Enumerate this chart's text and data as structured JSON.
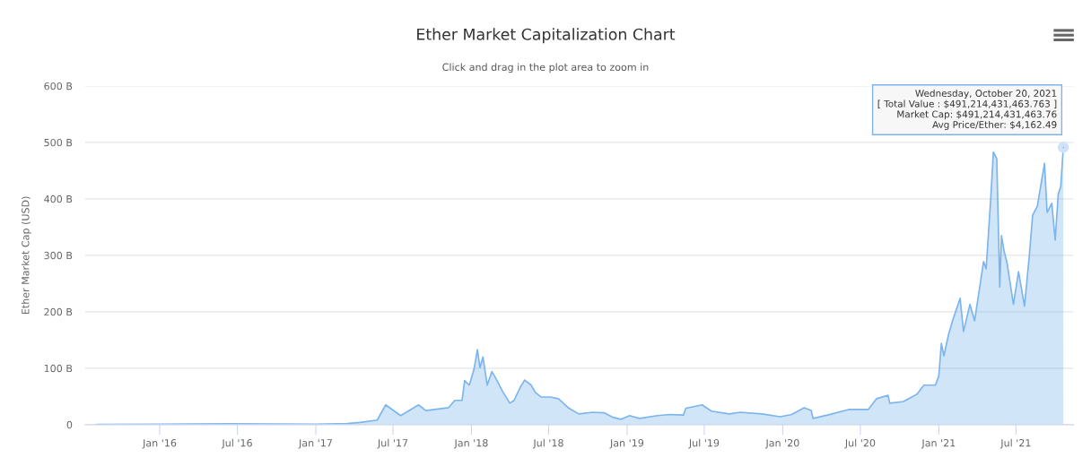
{
  "chart_data": {
    "type": "area",
    "title": "Ether Market Capitalization Chart",
    "subtitle": "Click and drag in the plot area to zoom in",
    "ylabel": "Ether Market Cap (USD)",
    "x": [
      "2015-08-07",
      "2016-01-01",
      "2016-03-15",
      "2016-06-17",
      "2016-12-31",
      "2017-03-15",
      "2017-04-15",
      "2017-05-25",
      "2017-06-14",
      "2017-07-19",
      "2017-08-30",
      "2017-09-16",
      "2017-11-08",
      "2017-11-23",
      "2017-12-10",
      "2017-12-16",
      "2017-12-27",
      "2018-01-07",
      "2018-01-15",
      "2018-01-21",
      "2018-01-28",
      "2018-02-07",
      "2018-02-18",
      "2018-02-28",
      "2018-03-15",
      "2018-04-01",
      "2018-04-11",
      "2018-04-26",
      "2018-05-06",
      "2018-05-21",
      "2018-05-31",
      "2018-06-13",
      "2018-07-05",
      "2018-07-24",
      "2018-08-16",
      "2018-09-10",
      "2018-10-12",
      "2018-11-08",
      "2018-11-29",
      "2018-12-18",
      "2019-01-07",
      "2019-01-30",
      "2019-03-13",
      "2019-04-11",
      "2019-05-13",
      "2019-05-19",
      "2019-06-26",
      "2019-07-18",
      "2019-08-29",
      "2019-09-23",
      "2019-11-14",
      "2019-12-26",
      "2020-01-22",
      "2020-02-20",
      "2020-03-08",
      "2020-03-12",
      "2020-04-15",
      "2020-06-05",
      "2020-07-20",
      "2020-08-08",
      "2020-09-04",
      "2020-09-08",
      "2020-10-10",
      "2020-11-11",
      "2020-11-27",
      "2020-12-24",
      "2021-01-01",
      "2021-01-07",
      "2021-01-13",
      "2021-01-24",
      "2021-02-03",
      "2021-02-20",
      "2021-02-28",
      "2021-03-15",
      "2021-03-26",
      "2021-04-07",
      "2021-04-16",
      "2021-04-22",
      "2021-05-03",
      "2021-05-09",
      "2021-05-17",
      "2021-05-24",
      "2021-05-28",
      "2021-06-03",
      "2021-06-10",
      "2021-06-25",
      "2021-07-07",
      "2021-07-21",
      "2021-08-01",
      "2021-08-09",
      "2021-08-20",
      "2021-09-06",
      "2021-09-12",
      "2021-09-23",
      "2021-10-01",
      "2021-10-08",
      "2021-10-14",
      "2021-10-20"
    ],
    "series": [
      {
        "color": "#7cb5ec",
        "values": [
          0.2,
          0.7,
          1,
          1.5,
          0.7,
          2,
          4,
          8,
          35,
          16,
          35,
          25,
          30,
          43,
          43,
          78,
          70,
          98,
          133,
          101,
          120,
          70,
          94,
          81,
          59,
          38,
          43,
          67,
          79,
          70,
          57,
          49,
          49,
          46,
          30,
          19,
          22,
          21,
          13,
          9.5,
          16,
          11,
          16,
          18,
          17,
          29,
          35,
          24,
          19,
          22,
          19,
          14,
          18,
          30,
          25,
          11,
          17,
          27,
          27,
          46,
          52,
          38,
          41,
          54,
          70,
          70,
          86,
          144,
          122,
          160,
          186,
          224,
          165,
          213,
          184,
          244,
          289,
          276,
          403,
          483,
          471,
          244,
          335,
          308,
          287,
          213,
          271,
          210,
          297,
          371,
          387,
          463,
          376,
          392,
          327,
          408,
          422,
          491.2
        ]
      }
    ],
    "xlim": [
      "2015-07-10",
      "2021-11-13"
    ],
    "xticks": [
      {
        "value": "2016-01-01",
        "label": "Jan '16"
      },
      {
        "value": "2016-07-01",
        "label": "Jul '16"
      },
      {
        "value": "2017-01-01",
        "label": "Jan '17"
      },
      {
        "value": "2017-07-01",
        "label": "Jul '17"
      },
      {
        "value": "2018-01-01",
        "label": "Jan '18"
      },
      {
        "value": "2018-07-01",
        "label": "Jul '18"
      },
      {
        "value": "2019-01-01",
        "label": "Jan '19"
      },
      {
        "value": "2019-07-01",
        "label": "Jul '19"
      },
      {
        "value": "2020-01-01",
        "label": "Jan '20"
      },
      {
        "value": "2020-07-01",
        "label": "Jul '20"
      },
      {
        "value": "2021-01-01",
        "label": "Jan '21"
      },
      {
        "value": "2021-07-01",
        "label": "Jul '21"
      }
    ],
    "ylim": [
      0,
      600
    ],
    "yticks": [
      0,
      {
        "value": 100,
        "label": "100 B"
      },
      {
        "value": 200,
        "label": "200 B"
      },
      {
        "value": 300,
        "label": "300 B"
      },
      {
        "value": 400,
        "label": "400 B"
      },
      {
        "value": 500,
        "label": "500 B"
      },
      {
        "value": 600,
        "label": "600 B"
      }
    ],
    "grid": "y",
    "marker": "none",
    "line_style": "solid",
    "annotations": [
      {
        "text": "Wednesday, October 20, 2021\n[ Total Value : $491,214,431,463.763 ]\nMarket Cap: $491,214,431,463.76\nAvg Price/Ether: $4,162.49",
        "x": "2021-10-20",
        "y": 491.2
      }
    ]
  }
}
